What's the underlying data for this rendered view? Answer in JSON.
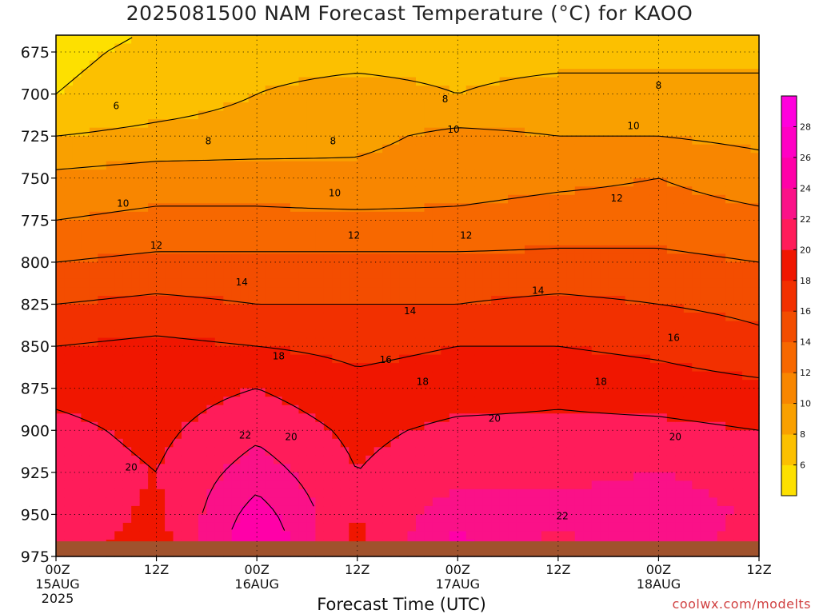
{
  "title": "2025081500 NAM Forecast Temperature (°C) for KAOO",
  "credit": "coolwx.com/modelts",
  "colors": {
    "band_4_6": "#fde000",
    "band_6_8": "#fcc000",
    "band_8_10": "#f9a000",
    "band_10_12": "#f88600",
    "band_12_14": "#f76800",
    "band_14_16": "#f34d00",
    "band_16_18": "#f23000",
    "band_18_20": "#f01600",
    "band_20_22": "#ff1c5a",
    "band_22_24": "#fa1188",
    "band_24_26": "#ff00a8",
    "band_26_28": "#ff00c4",
    "band_28_30": "#ff00dd",
    "ground": "#a0522d",
    "contour": "#000000"
  },
  "chart_data": {
    "type": "heatmap",
    "title": "2025081500 NAM Forecast Temperature (°C) for KAOO",
    "xlabel": "Forecast Time (UTC)",
    "ylabel": "",
    "x_ticks": [
      {
        "hour": 0,
        "label": "00Z",
        "date": "15AUG",
        "year": "2025"
      },
      {
        "hour": 12,
        "label": "12Z",
        "date": "",
        "year": ""
      },
      {
        "hour": 24,
        "label": "00Z",
        "date": "16AUG",
        "year": ""
      },
      {
        "hour": 36,
        "label": "12Z",
        "date": "",
        "year": ""
      },
      {
        "hour": 48,
        "label": "00Z",
        "date": "17AUG",
        "year": ""
      },
      {
        "hour": 60,
        "label": "12Z",
        "date": "",
        "year": ""
      },
      {
        "hour": 72,
        "label": "00Z",
        "date": "18AUG",
        "year": ""
      },
      {
        "hour": 84,
        "label": "12Z",
        "date": "",
        "year": ""
      }
    ],
    "xlim": [
      0,
      84
    ],
    "y_ticks": [
      675,
      700,
      725,
      750,
      775,
      800,
      825,
      850,
      875,
      900,
      925,
      950,
      975
    ],
    "ylim": [
      665,
      975
    ],
    "y_units": "hPa",
    "grid": true,
    "colorbar": {
      "levels": [
        4,
        6,
        8,
        10,
        12,
        14,
        16,
        18,
        20,
        22,
        24,
        26,
        28,
        30
      ],
      "tick_labels": [
        6,
        8,
        10,
        12,
        14,
        16,
        18,
        20,
        22,
        24,
        26,
        28
      ]
    },
    "contour_labels": [
      {
        "hour": 7.2,
        "p": 707,
        "text": "6"
      },
      {
        "hour": 18.2,
        "p": 728,
        "text": "8"
      },
      {
        "hour": 33.1,
        "p": 728,
        "text": "8"
      },
      {
        "hour": 46.5,
        "p": 703,
        "text": "8"
      },
      {
        "hour": 72,
        "p": 695,
        "text": "8"
      },
      {
        "hour": 47.5,
        "p": 721,
        "text": "10"
      },
      {
        "hour": 69,
        "p": 719,
        "text": "10"
      },
      {
        "hour": 8,
        "p": 765,
        "text": "10"
      },
      {
        "hour": 33.3,
        "p": 759,
        "text": "10"
      },
      {
        "hour": 67,
        "p": 762,
        "text": "12"
      },
      {
        "hour": 12,
        "p": 790,
        "text": "12"
      },
      {
        "hour": 35.6,
        "p": 784,
        "text": "12"
      },
      {
        "hour": 49,
        "p": 784,
        "text": "12"
      },
      {
        "hour": 22.2,
        "p": 812,
        "text": "14"
      },
      {
        "hour": 42.3,
        "p": 829,
        "text": "14"
      },
      {
        "hour": 57.6,
        "p": 817,
        "text": "14"
      },
      {
        "hour": 73.8,
        "p": 845,
        "text": "16"
      },
      {
        "hour": 39.4,
        "p": 858,
        "text": "16"
      },
      {
        "hour": 26.6,
        "p": 856,
        "text": "18"
      },
      {
        "hour": 43.8,
        "p": 871,
        "text": "18"
      },
      {
        "hour": 65.1,
        "p": 871,
        "text": "18"
      },
      {
        "hour": 52.4,
        "p": 893,
        "text": "20"
      },
      {
        "hour": 28.1,
        "p": 904,
        "text": "20"
      },
      {
        "hour": 9,
        "p": 922,
        "text": "20"
      },
      {
        "hour": 74,
        "p": 904,
        "text": "20"
      },
      {
        "hour": 22.6,
        "p": 903,
        "text": "22"
      },
      {
        "hour": 60.5,
        "p": 951,
        "text": "22"
      }
    ],
    "profiles": [
      {
        "hour": 0,
        "levels": [
          {
            "p": 675,
            "t": 5.5
          },
          {
            "p": 700,
            "t": 6
          },
          {
            "p": 725,
            "t": 8
          },
          {
            "p": 750,
            "t": 10.5
          },
          {
            "p": 775,
            "t": 12
          },
          {
            "p": 800,
            "t": 14
          },
          {
            "p": 825,
            "t": 16
          },
          {
            "p": 850,
            "t": 18
          },
          {
            "p": 875,
            "t": 19.5
          },
          {
            "p": 900,
            "t": 20.5
          },
          {
            "p": 925,
            "t": 21
          },
          {
            "p": 950,
            "t": 21.5
          },
          {
            "p": 965,
            "t": 21
          }
        ]
      },
      {
        "hour": 12,
        "levels": [
          {
            "p": 675,
            "t": 6.5
          },
          {
            "p": 700,
            "t": 7
          },
          {
            "p": 725,
            "t": 8.5
          },
          {
            "p": 750,
            "t": 11
          },
          {
            "p": 775,
            "t": 12.5
          },
          {
            "p": 800,
            "t": 14.5
          },
          {
            "p": 825,
            "t": 16.5
          },
          {
            "p": 850,
            "t": 18.5
          },
          {
            "p": 875,
            "t": 19
          },
          {
            "p": 900,
            "t": 19.5
          },
          {
            "p": 925,
            "t": 20
          },
          {
            "p": 950,
            "t": 19.5
          },
          {
            "p": 965,
            "t": 19
          }
        ]
      },
      {
        "hour": 24,
        "levels": [
          {
            "p": 675,
            "t": 7.5
          },
          {
            "p": 700,
            "t": 8
          },
          {
            "p": 725,
            "t": 8.8
          },
          {
            "p": 750,
            "t": 11
          },
          {
            "p": 775,
            "t": 12.5
          },
          {
            "p": 800,
            "t": 14.5
          },
          {
            "p": 825,
            "t": 16
          },
          {
            "p": 850,
            "t": 18
          },
          {
            "p": 875,
            "t": 20
          },
          {
            "p": 900,
            "t": 21.5
          },
          {
            "p": 925,
            "t": 23
          },
          {
            "p": 950,
            "t": 25
          },
          {
            "p": 965,
            "t": 26
          }
        ]
      },
      {
        "hour": 36,
        "levels": [
          {
            "p": 675,
            "t": 7.5
          },
          {
            "p": 700,
            "t": 8.5
          },
          {
            "p": 725,
            "t": 9.5
          },
          {
            "p": 750,
            "t": 10.5
          },
          {
            "p": 775,
            "t": 12.5
          },
          {
            "p": 800,
            "t": 14.5
          },
          {
            "p": 825,
            "t": 16
          },
          {
            "p": 850,
            "t": 17.5
          },
          {
            "p": 875,
            "t": 18.5
          },
          {
            "p": 900,
            "t": 19.5
          },
          {
            "p": 925,
            "t": 20
          },
          {
            "p": 950,
            "t": 20
          },
          {
            "p": 965,
            "t": 19.5
          }
        ]
      },
      {
        "hour": 48,
        "levels": [
          {
            "p": 675,
            "t": 7.5
          },
          {
            "p": 700,
            "t": 8
          },
          {
            "p": 725,
            "t": 10.5
          },
          {
            "p": 750,
            "t": 11
          },
          {
            "p": 775,
            "t": 12.5
          },
          {
            "p": 800,
            "t": 14.5
          },
          {
            "p": 825,
            "t": 16
          },
          {
            "p": 850,
            "t": 18
          },
          {
            "p": 875,
            "t": 19
          },
          {
            "p": 900,
            "t": 20.5
          },
          {
            "p": 925,
            "t": 21.5
          },
          {
            "p": 950,
            "t": 23
          },
          {
            "p": 965,
            "t": 24.5
          }
        ]
      },
      {
        "hour": 60,
        "levels": [
          {
            "p": 675,
            "t": 7.5
          },
          {
            "p": 700,
            "t": 8.5
          },
          {
            "p": 725,
            "t": 10
          },
          {
            "p": 750,
            "t": 11.5
          },
          {
            "p": 775,
            "t": 13
          },
          {
            "p": 800,
            "t": 14.5
          },
          {
            "p": 825,
            "t": 16.5
          },
          {
            "p": 850,
            "t": 18
          },
          {
            "p": 875,
            "t": 19.5
          },
          {
            "p": 900,
            "t": 20.5
          },
          {
            "p": 925,
            "t": 21.5
          },
          {
            "p": 950,
            "t": 22.5
          },
          {
            "p": 965,
            "t": 21.5
          }
        ]
      },
      {
        "hour": 72,
        "levels": [
          {
            "p": 675,
            "t": 7.5
          },
          {
            "p": 700,
            "t": 8.5
          },
          {
            "p": 725,
            "t": 10
          },
          {
            "p": 750,
            "t": 12
          },
          {
            "p": 775,
            "t": 13
          },
          {
            "p": 800,
            "t": 14.5
          },
          {
            "p": 825,
            "t": 16
          },
          {
            "p": 850,
            "t": 17.5
          },
          {
            "p": 875,
            "t": 19
          },
          {
            "p": 900,
            "t": 20.5
          },
          {
            "p": 925,
            "t": 22
          },
          {
            "p": 950,
            "t": 23.5
          },
          {
            "p": 965,
            "t": 24
          }
        ]
      },
      {
        "hour": 84,
        "levels": [
          {
            "p": 675,
            "t": 7.5
          },
          {
            "p": 700,
            "t": 8.5
          },
          {
            "p": 725,
            "t": 9.5
          },
          {
            "p": 750,
            "t": 11
          },
          {
            "p": 775,
            "t": 12.5
          },
          {
            "p": 800,
            "t": 14
          },
          {
            "p": 825,
            "t": 15.5
          },
          {
            "p": 850,
            "t": 16.5
          },
          {
            "p": 875,
            "t": 18.5
          },
          {
            "p": 900,
            "t": 20
          },
          {
            "p": 925,
            "t": 21
          },
          {
            "p": 950,
            "t": 21.5
          },
          {
            "p": 965,
            "t": 20.5
          }
        ]
      }
    ],
    "ground_top_p": 966
  }
}
